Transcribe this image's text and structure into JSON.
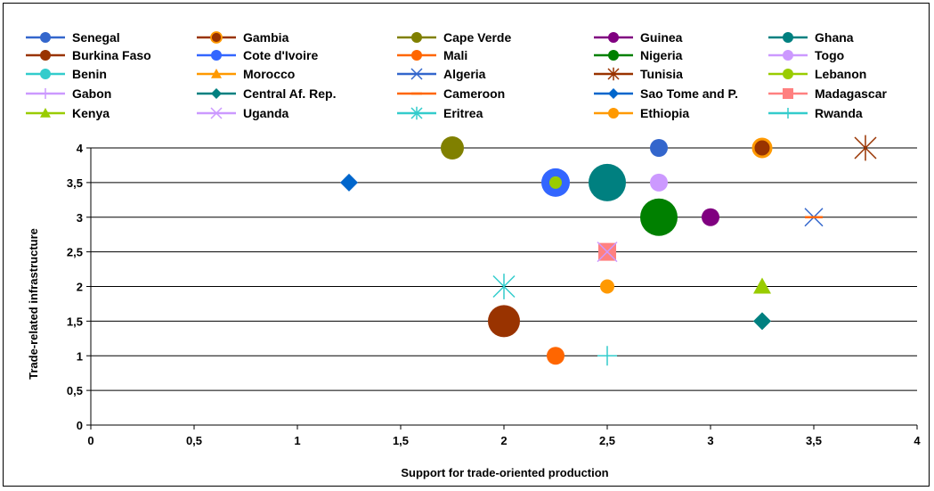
{
  "chart_data": {
    "type": "scatter",
    "title": "",
    "xlabel": "Support for trade-oriented production",
    "ylabel": "Trade-related infrastructure",
    "xlim": [
      0,
      4
    ],
    "ylim": [
      0,
      4
    ],
    "x_ticks": [
      "0",
      "0,5",
      "1",
      "1,5",
      "2",
      "2,5",
      "3",
      "3,5",
      "4"
    ],
    "y_ticks": [
      "0",
      "0,5",
      "1",
      "1,5",
      "2",
      "2,5",
      "3",
      "3,5",
      "4"
    ],
    "grid": "horizontal",
    "legend_position": "top",
    "series": [
      {
        "name": "Senegal",
        "color": "#3366cc",
        "marker": "circle",
        "points": [
          {
            "x": 2.75,
            "y": 4,
            "size": 1
          }
        ]
      },
      {
        "name": "Gambia",
        "color": "#993300",
        "marker": "circle-ring",
        "ring": "#ff9900",
        "points": [
          {
            "x": 3.25,
            "y": 4,
            "size": 1
          }
        ]
      },
      {
        "name": "Cape Verde",
        "color": "#808000",
        "marker": "circle",
        "points": [
          {
            "x": 1.75,
            "y": 4,
            "size": 1.3
          }
        ]
      },
      {
        "name": "Guinea",
        "color": "#800080",
        "marker": "circle",
        "points": [
          {
            "x": 3,
            "y": 3,
            "size": 1
          }
        ]
      },
      {
        "name": "Ghana",
        "color": "#008080",
        "marker": "circle",
        "points": [
          {
            "x": 2.5,
            "y": 3.5,
            "size": 2.1
          }
        ]
      },
      {
        "name": "Burkina Faso",
        "color": "#993300",
        "marker": "circle",
        "points": [
          {
            "x": 2,
            "y": 1.5,
            "size": 1.8
          }
        ]
      },
      {
        "name": "Cote d'Ivoire",
        "color": "#3366ff",
        "marker": "circle",
        "points": [
          {
            "x": 2.25,
            "y": 3.5,
            "size": 1.6
          }
        ]
      },
      {
        "name": "Mali",
        "color": "#ff6600",
        "marker": "circle",
        "points": [
          {
            "x": 2.25,
            "y": 1,
            "size": 1
          }
        ]
      },
      {
        "name": "Nigeria",
        "color": "#008000",
        "marker": "circle",
        "points": [
          {
            "x": 2.75,
            "y": 3,
            "size": 2.1
          }
        ]
      },
      {
        "name": "Togo",
        "color": "#cc99ff",
        "marker": "circle",
        "points": [
          {
            "x": 2.75,
            "y": 3.5,
            "size": 1
          }
        ]
      },
      {
        "name": "Benin",
        "color": "#33cccc",
        "marker": "circle",
        "points": []
      },
      {
        "name": "Morocco",
        "color": "#ff9900",
        "marker": "triangle",
        "points": []
      },
      {
        "name": "Algeria",
        "color": "#3366cc",
        "marker": "x",
        "points": [
          {
            "x": 3.5,
            "y": 3,
            "size": 1
          }
        ]
      },
      {
        "name": "Tunisia",
        "color": "#993300",
        "marker": "star",
        "points": [
          {
            "x": 3.75,
            "y": 4,
            "size": 1.2
          }
        ]
      },
      {
        "name": "Lebanon",
        "color": "#99cc00",
        "marker": "circle",
        "points": [
          {
            "x": 2.25,
            "y": 3.5,
            "size": 0.7
          }
        ]
      },
      {
        "name": "Gabon",
        "color": "#cc99ff",
        "marker": "plus",
        "points": []
      },
      {
        "name": "Central Af. Rep.",
        "color": "#008080",
        "marker": "diamond",
        "points": [
          {
            "x": 3.25,
            "y": 1.5,
            "size": 1
          }
        ]
      },
      {
        "name": "Cameroon",
        "color": "#ff6600",
        "marker": "dash",
        "points": [
          {
            "x": 3.5,
            "y": 3,
            "size": 1
          }
        ]
      },
      {
        "name": "Sao Tome and P.",
        "color": "#0066cc",
        "marker": "diamond",
        "points": [
          {
            "x": 1.25,
            "y": 3.5,
            "size": 1
          }
        ]
      },
      {
        "name": "Madagascar",
        "color": "#ff8080",
        "marker": "square",
        "points": [
          {
            "x": 2.5,
            "y": 2.5,
            "size": 1
          }
        ]
      },
      {
        "name": "Kenya",
        "color": "#99cc00",
        "marker": "triangle",
        "points": [
          {
            "x": 3.25,
            "y": 2,
            "size": 1
          }
        ]
      },
      {
        "name": "Uganda",
        "color": "#cc99ff",
        "marker": "x",
        "points": [
          {
            "x": 2.5,
            "y": 2.5,
            "size": 1.1
          }
        ]
      },
      {
        "name": "Eritrea",
        "color": "#33cccc",
        "marker": "star",
        "points": [
          {
            "x": 2,
            "y": 2,
            "size": 1.2
          }
        ]
      },
      {
        "name": "Ethiopia",
        "color": "#ff9900",
        "marker": "circle",
        "points": [
          {
            "x": 2.5,
            "y": 2,
            "size": 0.8
          }
        ]
      },
      {
        "name": "Rwanda",
        "color": "#33cccc",
        "marker": "plus",
        "points": [
          {
            "x": 2.5,
            "y": 1,
            "size": 1.1
          }
        ]
      }
    ]
  }
}
